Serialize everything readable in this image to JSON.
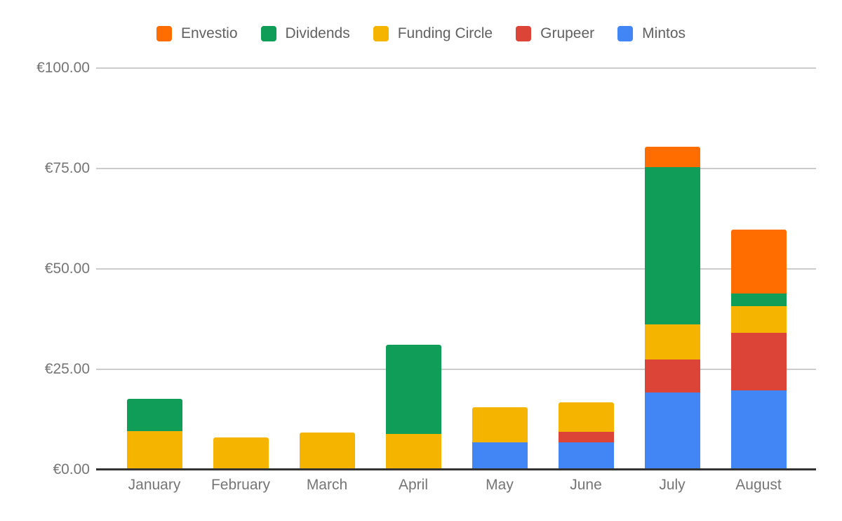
{
  "chart_data": {
    "type": "bar",
    "stacked": true,
    "title": "",
    "xlabel": "",
    "ylabel": "",
    "grid": true,
    "categories": [
      "January",
      "February",
      "March",
      "April",
      "May",
      "June",
      "July",
      "August"
    ],
    "stack_order": "bottom-to-top",
    "series": [
      {
        "name": "Mintos",
        "color": "#4285F4",
        "values": [
          0,
          0,
          0,
          0,
          6.9,
          6.8,
          19.2,
          19.7
        ]
      },
      {
        "name": "Grupeer",
        "color": "#DB4437",
        "values": [
          0,
          0,
          0,
          0,
          0,
          2.6,
          8.3,
          14.4
        ]
      },
      {
        "name": "Funding Circle",
        "color": "#F4B400",
        "values": [
          9.6,
          8.0,
          9.3,
          8.9,
          8.6,
          7.3,
          8.7,
          6.6
        ]
      },
      {
        "name": "Dividends",
        "color": "#0F9D58",
        "values": [
          8.0,
          0,
          0,
          22.3,
          0,
          0,
          39.1,
          3.2
        ]
      },
      {
        "name": "Envestio",
        "color": "#FF6D00",
        "values": [
          0,
          0,
          0,
          0,
          0,
          0,
          5.2,
          15.9
        ]
      }
    ],
    "totals": [
      17.6,
      8.0,
      9.3,
      31.2,
      15.5,
      16.7,
      80.5,
      59.8
    ],
    "y_axis": {
      "min": 0,
      "max": 100,
      "currency": "EUR",
      "ticks": [
        {
          "value": 0,
          "label": "€0.00"
        },
        {
          "value": 25,
          "label": "€25.00"
        },
        {
          "value": 50,
          "label": "€50.00"
        },
        {
          "value": 75,
          "label": "€75.00"
        },
        {
          "value": 100,
          "label": "€100.00"
        }
      ]
    },
    "legend": {
      "position": "top",
      "items": [
        {
          "label": "Envestio",
          "color": "#FF6D00"
        },
        {
          "label": "Dividends",
          "color": "#0F9D58"
        },
        {
          "label": "Funding Circle",
          "color": "#F4B400"
        },
        {
          "label": "Grupeer",
          "color": "#DB4437"
        },
        {
          "label": "Mintos",
          "color": "#4285F4"
        }
      ]
    }
  }
}
